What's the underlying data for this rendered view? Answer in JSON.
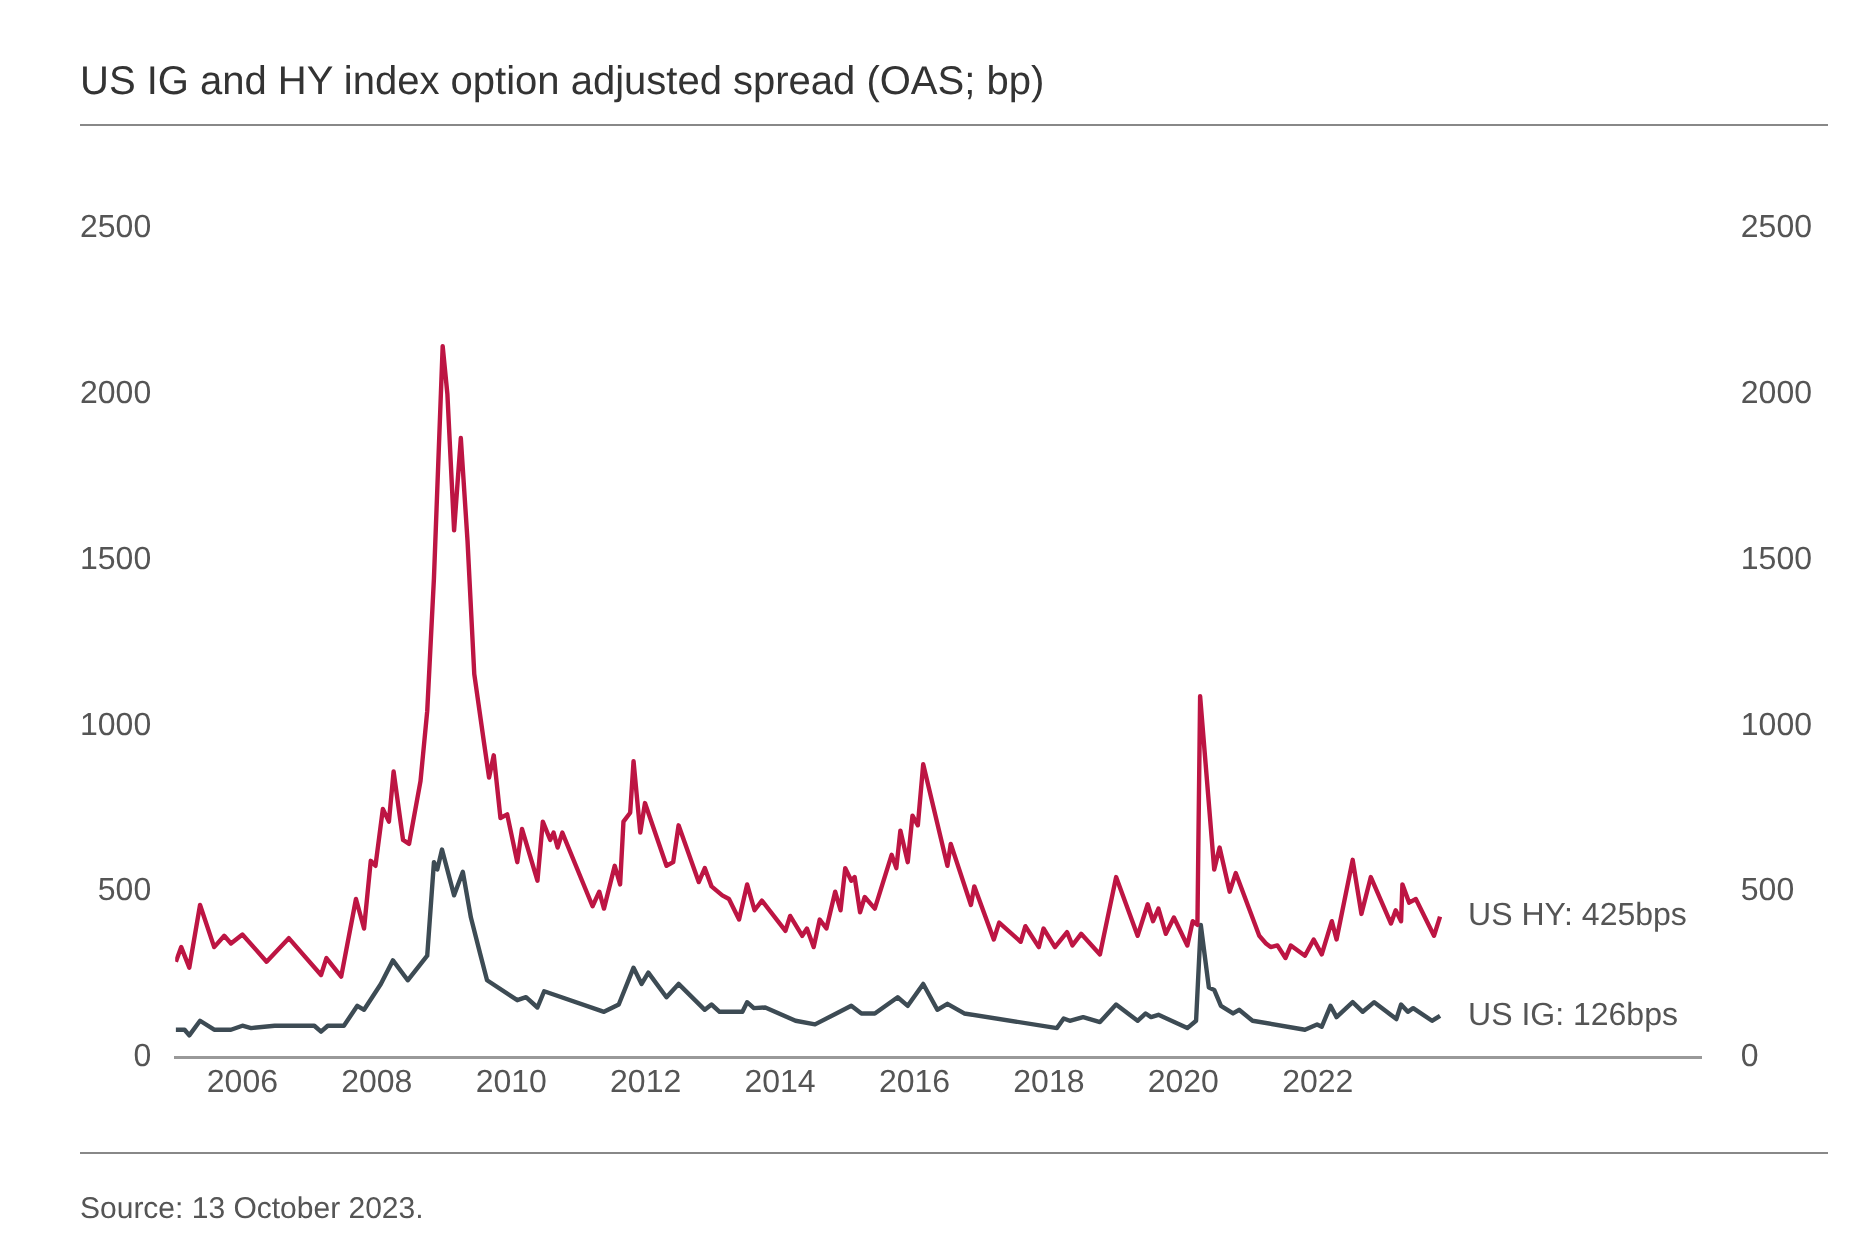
{
  "chart_data": {
    "type": "line",
    "title": "US IG and HY index option adjusted spread (OAS; bp)",
    "xlim": [
      2005,
      2027.7
    ],
    "xticks": [
      2006,
      2008,
      2010,
      2012,
      2014,
      2016,
      2018,
      2020,
      2022
    ],
    "ylim": [
      0,
      2500
    ],
    "yticks": [
      0,
      500,
      1000,
      1500,
      2000,
      2500
    ],
    "y2lim": [
      0,
      2500
    ],
    "y2ticks": [
      0,
      500,
      1000,
      1500,
      2000,
      2500
    ],
    "grid": false,
    "legend": false,
    "series": [
      {
        "color": "#bd1543",
        "x": [
          2005.01,
          2005.09,
          2005.21,
          2005.37,
          2005.58,
          2005.73,
          2005.83,
          2006.0,
          2006.36,
          2006.69,
          2007.17,
          2007.25,
          2007.47,
          2007.69,
          2007.81,
          2007.91,
          2007.98,
          2008.09,
          2008.18,
          2008.25,
          2008.39,
          2008.48,
          2008.65,
          2008.75,
          2008.85,
          2008.98,
          2009.05,
          2009.15,
          2009.25,
          2009.35,
          2009.45,
          2009.59,
          2009.67,
          2009.74,
          2009.84,
          2009.94,
          2010.09,
          2010.16,
          2010.39,
          2010.47,
          2010.58,
          2010.63,
          2010.69,
          2010.76,
          2011.21,
          2011.31,
          2011.38,
          2011.54,
          2011.62,
          2011.67,
          2011.77,
          2011.82,
          2011.92,
          2011.99,
          2012.31,
          2012.41,
          2012.49,
          2012.79,
          2012.88,
          2012.98,
          2013.14,
          2013.24,
          2013.39,
          2013.51,
          2013.62,
          2013.73,
          2014.08,
          2014.15,
          2014.33,
          2014.4,
          2014.5,
          2014.59,
          2014.69,
          2014.82,
          2014.9,
          2014.97,
          2015.06,
          2015.11,
          2015.19,
          2015.26,
          2015.41,
          2015.66,
          2015.73,
          2015.79,
          2015.9,
          2015.97,
          2016.05,
          2016.13,
          2016.49,
          2016.54,
          2016.84,
          2016.89,
          2017.18,
          2017.26,
          2017.58,
          2017.65,
          2017.85,
          2017.92,
          2018.09,
          2018.27,
          2018.35,
          2018.48,
          2018.76,
          2019.0,
          2019.32,
          2019.47,
          2019.55,
          2019.63,
          2019.74,
          2019.86,
          2020.06,
          2020.14,
          2020.21,
          2020.25,
          2020.46,
          2020.54,
          2020.69,
          2020.78,
          2021.13,
          2021.23,
          2021.3,
          2021.4,
          2021.52,
          2021.6,
          2021.81,
          2021.94,
          2022.06,
          2022.21,
          2022.28,
          2022.52,
          2022.65,
          2022.79,
          2023.09,
          2023.16,
          2023.24,
          2023.26,
          2023.36,
          2023.46,
          2023.73,
          2023.82
        ],
        "values": [
          289,
          333,
          271,
          460,
          333,
          367,
          344,
          371,
          289,
          360,
          249,
          300,
          244,
          478,
          389,
          593,
          578,
          749,
          711,
          862,
          656,
          644,
          833,
          1044,
          1444,
          2144,
          2000,
          1589,
          1867,
          1556,
          1156,
          956,
          844,
          911,
          722,
          733,
          589,
          689,
          533,
          711,
          656,
          678,
          633,
          678,
          456,
          500,
          449,
          578,
          522,
          711,
          738,
          893,
          678,
          767,
          578,
          589,
          700,
          529,
          571,
          516,
          489,
          478,
          416,
          522,
          444,
          473,
          382,
          427,
          367,
          389,
          333,
          416,
          389,
          500,
          444,
          571,
          533,
          544,
          438,
          484,
          449,
          611,
          571,
          684,
          589,
          729,
          700,
          884,
          578,
          644,
          460,
          516,
          356,
          407,
          349,
          396,
          333,
          389,
          333,
          378,
          338,
          373,
          311,
          544,
          367,
          462,
          411,
          449,
          373,
          422,
          338,
          411,
          400,
          1089,
          567,
          633,
          500,
          556,
          367,
          344,
          333,
          338,
          300,
          338,
          307,
          356,
          311,
          411,
          356,
          596,
          433,
          544,
          404,
          444,
          411,
          522,
          467,
          478,
          367,
          425
        ]
      },
      {
        "color": "#3d4b54",
        "x": [
          2005.01,
          2005.14,
          2005.21,
          2005.37,
          2005.58,
          2005.83,
          2006.0,
          2006.13,
          2006.48,
          2007.07,
          2007.17,
          2007.27,
          2007.51,
          2007.71,
          2007.81,
          2008.06,
          2008.24,
          2008.46,
          2008.75,
          2008.85,
          2008.9,
          2008.97,
          2009.15,
          2009.28,
          2009.4,
          2009.54,
          2009.64,
          2010.09,
          2010.22,
          2010.39,
          2010.49,
          2011.38,
          2011.6,
          2011.82,
          2011.94,
          2012.04,
          2012.31,
          2012.49,
          2012.88,
          2012.98,
          2013.1,
          2013.44,
          2013.51,
          2013.61,
          2013.78,
          2014.23,
          2014.52,
          2015.06,
          2015.21,
          2015.41,
          2015.75,
          2015.9,
          2016.13,
          2016.34,
          2016.49,
          2016.74,
          2018.12,
          2018.22,
          2018.31,
          2018.51,
          2018.76,
          2019.0,
          2019.32,
          2019.44,
          2019.52,
          2019.63,
          2020.06,
          2020.19,
          2020.26,
          2020.38,
          2020.46,
          2020.56,
          2020.74,
          2020.83,
          2021.03,
          2021.81,
          2021.99,
          2022.06,
          2022.19,
          2022.28,
          2022.52,
          2022.67,
          2022.84,
          2023.17,
          2023.24,
          2023.34,
          2023.42,
          2023.7,
          2023.82
        ],
        "values": [
          84,
          84,
          67,
          111,
          84,
          84,
          96,
          89,
          96,
          96,
          78,
          96,
          96,
          156,
          144,
          222,
          293,
          233,
          307,
          589,
          567,
          627,
          489,
          560,
          422,
          311,
          233,
          173,
          182,
          151,
          200,
          138,
          160,
          271,
          222,
          256,
          182,
          222,
          144,
          160,
          138,
          138,
          167,
          149,
          151,
          111,
          100,
          156,
          133,
          133,
          182,
          156,
          222,
          144,
          162,
          133,
          89,
          118,
          111,
          122,
          107,
          160,
          111,
          133,
          122,
          129,
          89,
          111,
          400,
          211,
          204,
          156,
          133,
          144,
          111,
          84,
          100,
          93,
          156,
          122,
          167,
          138,
          167,
          116,
          160,
          138,
          149,
          111,
          126
        ]
      }
    ],
    "annotations": [
      {
        "text": "US HY: 425bps",
        "x": 2023.82,
        "y": 425
      },
      {
        "text": "US IG: 126bps",
        "x": 2023.82,
        "y": 126
      },
      "Source: 13 October 2023."
    ]
  }
}
